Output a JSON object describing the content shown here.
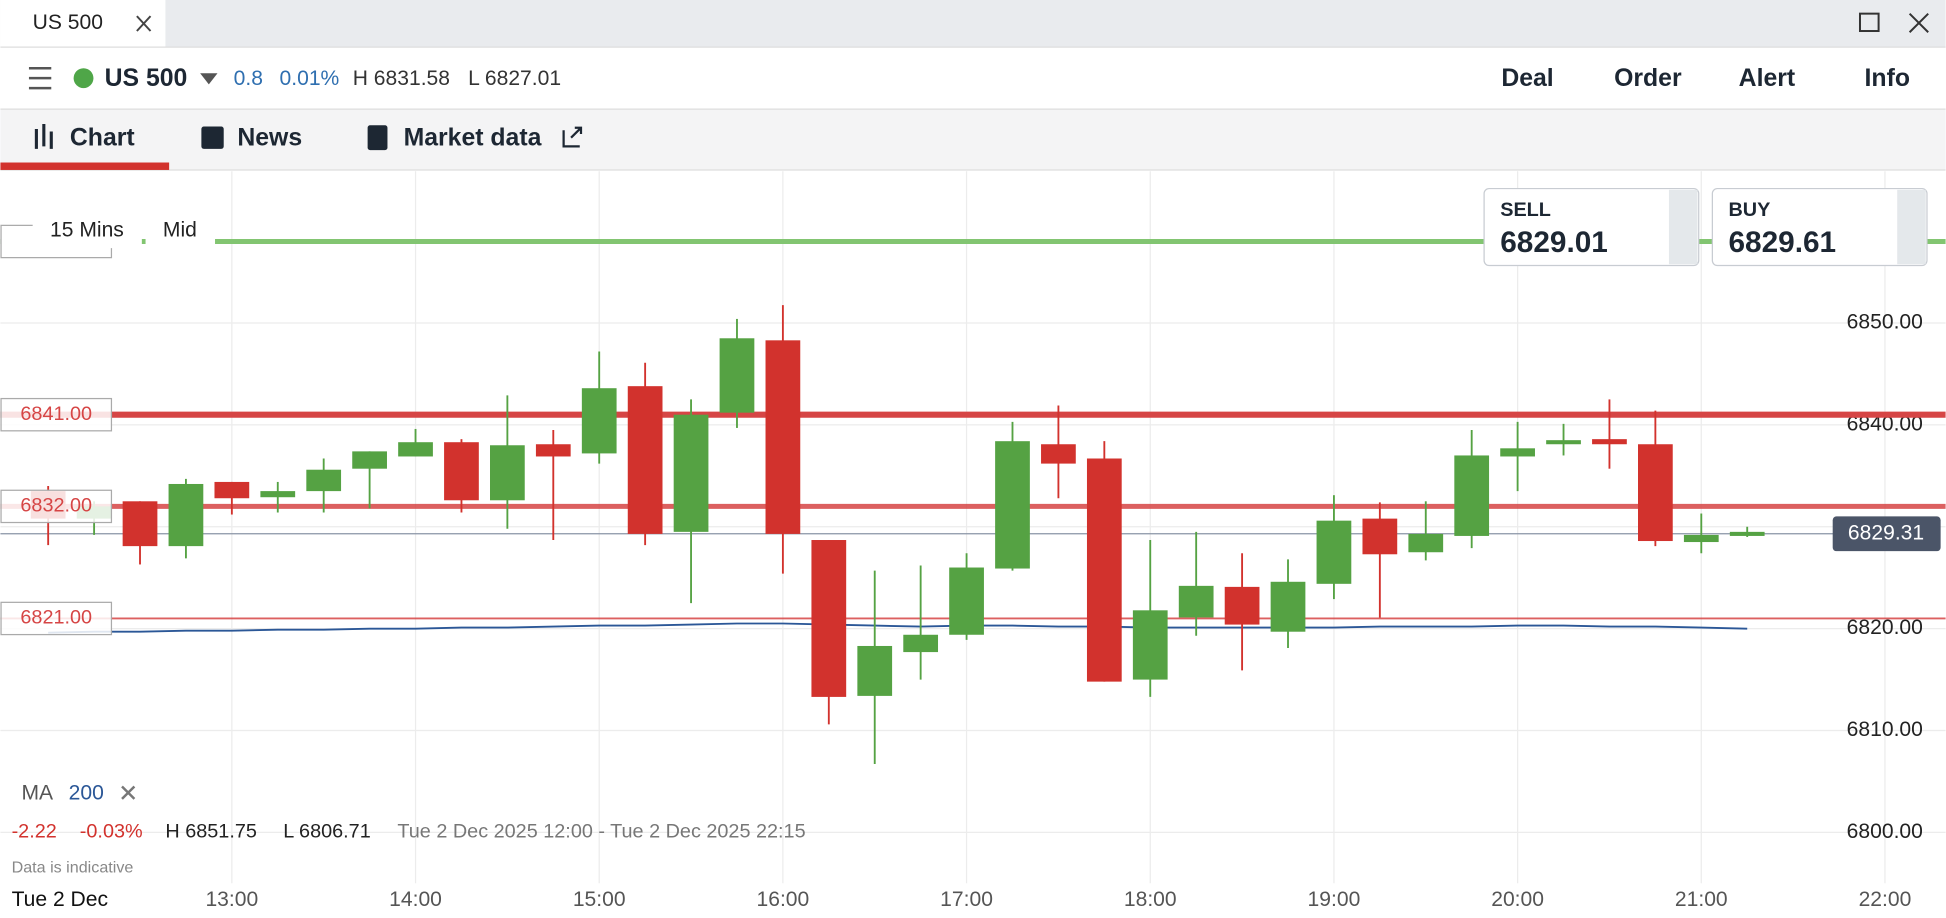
{
  "window": {
    "tab": "US 500"
  },
  "header": {
    "instrument": "US 500",
    "change": "0.8",
    "change_pct": "0.01%",
    "high": "H 6831.58",
    "low": "L 6827.01",
    "actions": [
      "Deal",
      "Order",
      "Alert",
      "Info"
    ]
  },
  "tabs": [
    "Chart",
    "News",
    "Market data"
  ],
  "chart_data": {
    "type": "candlestick",
    "interval": "15 Mins",
    "price_type": "Mid",
    "x": [
      12,
      12.25,
      12.5,
      12.75,
      13,
      13.25,
      13.5,
      13.75,
      14,
      14.25,
      14.5,
      14.75,
      15,
      15.25,
      15.5,
      15.75,
      16,
      16.25,
      16.5,
      16.75,
      17,
      17.25,
      17.5,
      17.75,
      18,
      18.25,
      18.5,
      18.75,
      19,
      19.25,
      19.5,
      19.75,
      20,
      20.25,
      20.5,
      20.75,
      21,
      21.25
    ],
    "open": [
      6833.5,
      6830.8,
      6832.5,
      6828.1,
      6834.4,
      6832.9,
      6833.5,
      6835.7,
      6836.9,
      6838.3,
      6832.6,
      6838.1,
      6837.2,
      6843.8,
      6829.5,
      6841.2,
      6848.3,
      6828.7,
      6813.4,
      6817.7,
      6819.4,
      6825.9,
      6838.1,
      6836.7,
      6815.0,
      6821.1,
      6824.1,
      6819.7,
      6824.4,
      6830.8,
      6827.5,
      6829.1,
      6836.9,
      6838.1,
      6838.6,
      6838.1,
      6828.5,
      6829.1
    ],
    "high": [
      6834.0,
      6832.5,
      6832.5,
      6834.7,
      6834.4,
      6834.4,
      6836.7,
      6837.4,
      6839.6,
      6838.6,
      6842.9,
      6839.5,
      6847.2,
      6846.1,
      6842.5,
      6850.4,
      6851.75,
      6828.7,
      6825.7,
      6826.2,
      6827.4,
      6840.3,
      6841.9,
      6838.4,
      6828.7,
      6829.5,
      6827.4,
      6826.8,
      6833.1,
      6832.4,
      6832.5,
      6839.5,
      6840.3,
      6840.1,
      6842.5,
      6841.4,
      6831.3,
      6830.0
    ],
    "low": [
      6828.2,
      6829.2,
      6826.3,
      6826.9,
      6831.2,
      6831.4,
      6831.4,
      6831.8,
      6836.9,
      6831.4,
      6829.8,
      6828.7,
      6836.2,
      6828.2,
      6822.5,
      6839.7,
      6825.4,
      6810.6,
      6806.71,
      6815.0,
      6818.9,
      6825.7,
      6832.8,
      6814.8,
      6813.3,
      6819.3,
      6815.9,
      6818.1,
      6822.9,
      6821.1,
      6826.7,
      6827.9,
      6833.5,
      6837.0,
      6835.7,
      6828.1,
      6827.4,
      6829.0
    ],
    "close": [
      6830.8,
      6832.0,
      6828.1,
      6834.2,
      6832.8,
      6833.5,
      6835.6,
      6837.4,
      6838.3,
      6832.6,
      6838.0,
      6836.9,
      6843.6,
      6829.3,
      6841.0,
      6848.5,
      6829.3,
      6813.3,
      6818.3,
      6819.4,
      6826.0,
      6838.4,
      6836.2,
      6814.8,
      6821.8,
      6824.2,
      6820.4,
      6824.6,
      6830.6,
      6827.3,
      6829.3,
      6837.0,
      6837.7,
      6838.5,
      6838.1,
      6828.6,
      6829.2,
      6829.5
    ],
    "up_color": "#55a243",
    "down_color": "#d2322d",
    "ma": {
      "name": "MA",
      "period": "200",
      "color": "#2b5797",
      "values": [
        6819.6,
        6819.7,
        6819.7,
        6819.8,
        6819.8,
        6819.9,
        6819.9,
        6820.0,
        6820.0,
        6820.1,
        6820.1,
        6820.2,
        6820.3,
        6820.3,
        6820.4,
        6820.5,
        6820.5,
        6820.4,
        6820.3,
        6820.2,
        6820.3,
        6820.3,
        6820.2,
        6820.2,
        6820.1,
        6820.1,
        6820.1,
        6820.1,
        6820.1,
        6820.2,
        6820.2,
        6820.2,
        6820.3,
        6820.3,
        6820.2,
        6820.2,
        6820.1,
        6820.0
      ]
    },
    "xlim": [
      11.74,
      22.33
    ],
    "xticks": [
      {
        "value": 13,
        "label": "13:00"
      },
      {
        "value": 14,
        "label": "14:00"
      },
      {
        "value": 15,
        "label": "15:00"
      },
      {
        "value": 16,
        "label": "16:00"
      },
      {
        "value": 17,
        "label": "17:00"
      },
      {
        "value": 18,
        "label": "18:00"
      },
      {
        "value": 19,
        "label": "19:00"
      },
      {
        "value": 20,
        "label": "20:00"
      },
      {
        "value": 21,
        "label": "21:00"
      },
      {
        "value": 22,
        "label": "22:00"
      }
    ],
    "ylim": [
      6791.6,
      6864.9
    ],
    "yticks": [
      {
        "value": 6800,
        "label": "6800.00"
      },
      {
        "value": 6810,
        "label": "6810.00"
      },
      {
        "value": 6820,
        "label": "6820.00"
      },
      {
        "value": 6830,
        "label": "6830.00"
      },
      {
        "value": 6840,
        "label": "6840.00"
      },
      {
        "value": 6850,
        "label": "6850.00"
      }
    ],
    "grid": true,
    "levels": [
      {
        "value": 6841,
        "label": "6841.00"
      },
      {
        "value": 6832,
        "label": "6832.00"
      },
      {
        "value": 6821,
        "label": "6821.00"
      }
    ],
    "level_color": "#d64545",
    "target_line": 6858,
    "target_color": "#82c571",
    "current_price": {
      "value": 6829.31,
      "label": "6829.31"
    },
    "sell": {
      "label": "SELL",
      "price": "6829.01"
    },
    "buy": {
      "label": "BUY",
      "price": "6829.61"
    },
    "date_label": "Tue 2 Dec"
  },
  "summary": {
    "change": "-2.22",
    "change_pct": "-0.03%",
    "high": "H 6851.75",
    "low": "L 6806.71",
    "range": "Tue 2 Dec 2025 12:00 - Tue 2 Dec 2025 22:15",
    "note": "Data is indicative"
  }
}
